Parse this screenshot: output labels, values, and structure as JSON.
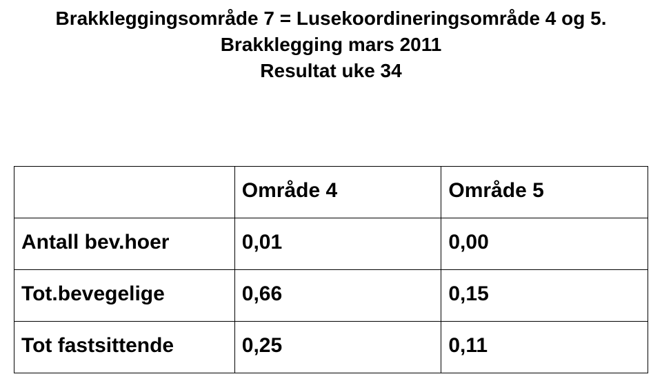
{
  "title": {
    "line1": "Brakkleggingsområde 7 = Lusekoordineringsområde 4 og 5.",
    "line2": "Brakklegging mars 2011",
    "line3": "Resultat uke 34",
    "fontsize": 28,
    "color": "#000000"
  },
  "table": {
    "columns": [
      "",
      "Område 4",
      "Område 5"
    ],
    "rows": [
      {
        "label": "Antall bev.hoer",
        "a": "0,01",
        "b": "0,00"
      },
      {
        "label": "Tot.bevegelige",
        "a": "0,66",
        "b": "0,15"
      },
      {
        "label": "Tot fastsittende",
        "a": "0,25",
        "b": "0,11"
      }
    ],
    "border_color": "#000000",
    "header_fontsize": 30,
    "cell_fontsize": 30,
    "font_weight": 700,
    "background_color": "#ffffff"
  }
}
